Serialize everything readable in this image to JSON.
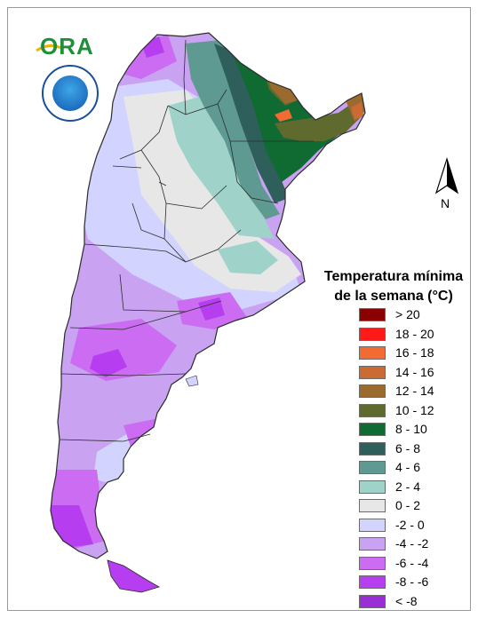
{
  "logos": {
    "brand": "ORA"
  },
  "north_arrow": {
    "label": "N"
  },
  "legend": {
    "title_line1": "Temperatura mínima",
    "title_line2": "de la semana (°C)",
    "items": [
      {
        "label": "> 20",
        "color": "#8b0000"
      },
      {
        "label": "18 - 20",
        "color": "#ff1a1a"
      },
      {
        "label": "16 - 18",
        "color": "#f26b33"
      },
      {
        "label": "14 - 16",
        "color": "#cc6a33"
      },
      {
        "label": "12 - 14",
        "color": "#9a6a2e"
      },
      {
        "label": "10 - 12",
        "color": "#5f6b2e"
      },
      {
        "label": "8 - 10",
        "color": "#0f6b32"
      },
      {
        "label": "6 - 8",
        "color": "#2f5f5a"
      },
      {
        "label": "4 - 6",
        "color": "#5f9a92"
      },
      {
        "label": "2 - 4",
        "color": "#9fd2c9"
      },
      {
        "label": "0 - 2",
        "color": "#e7e7e7"
      },
      {
        "label": "-2 - 0",
        "color": "#d3d3ff"
      },
      {
        "label": "-4 - -2",
        "color": "#c9a3f2"
      },
      {
        "label": "-6 - -4",
        "color": "#cb6cf2"
      },
      {
        "label": "-8 - -6",
        "color": "#b63df0"
      },
      {
        "label": "< -8",
        "color": "#9a2ed6"
      }
    ]
  },
  "map": {
    "country": "Argentina"
  }
}
